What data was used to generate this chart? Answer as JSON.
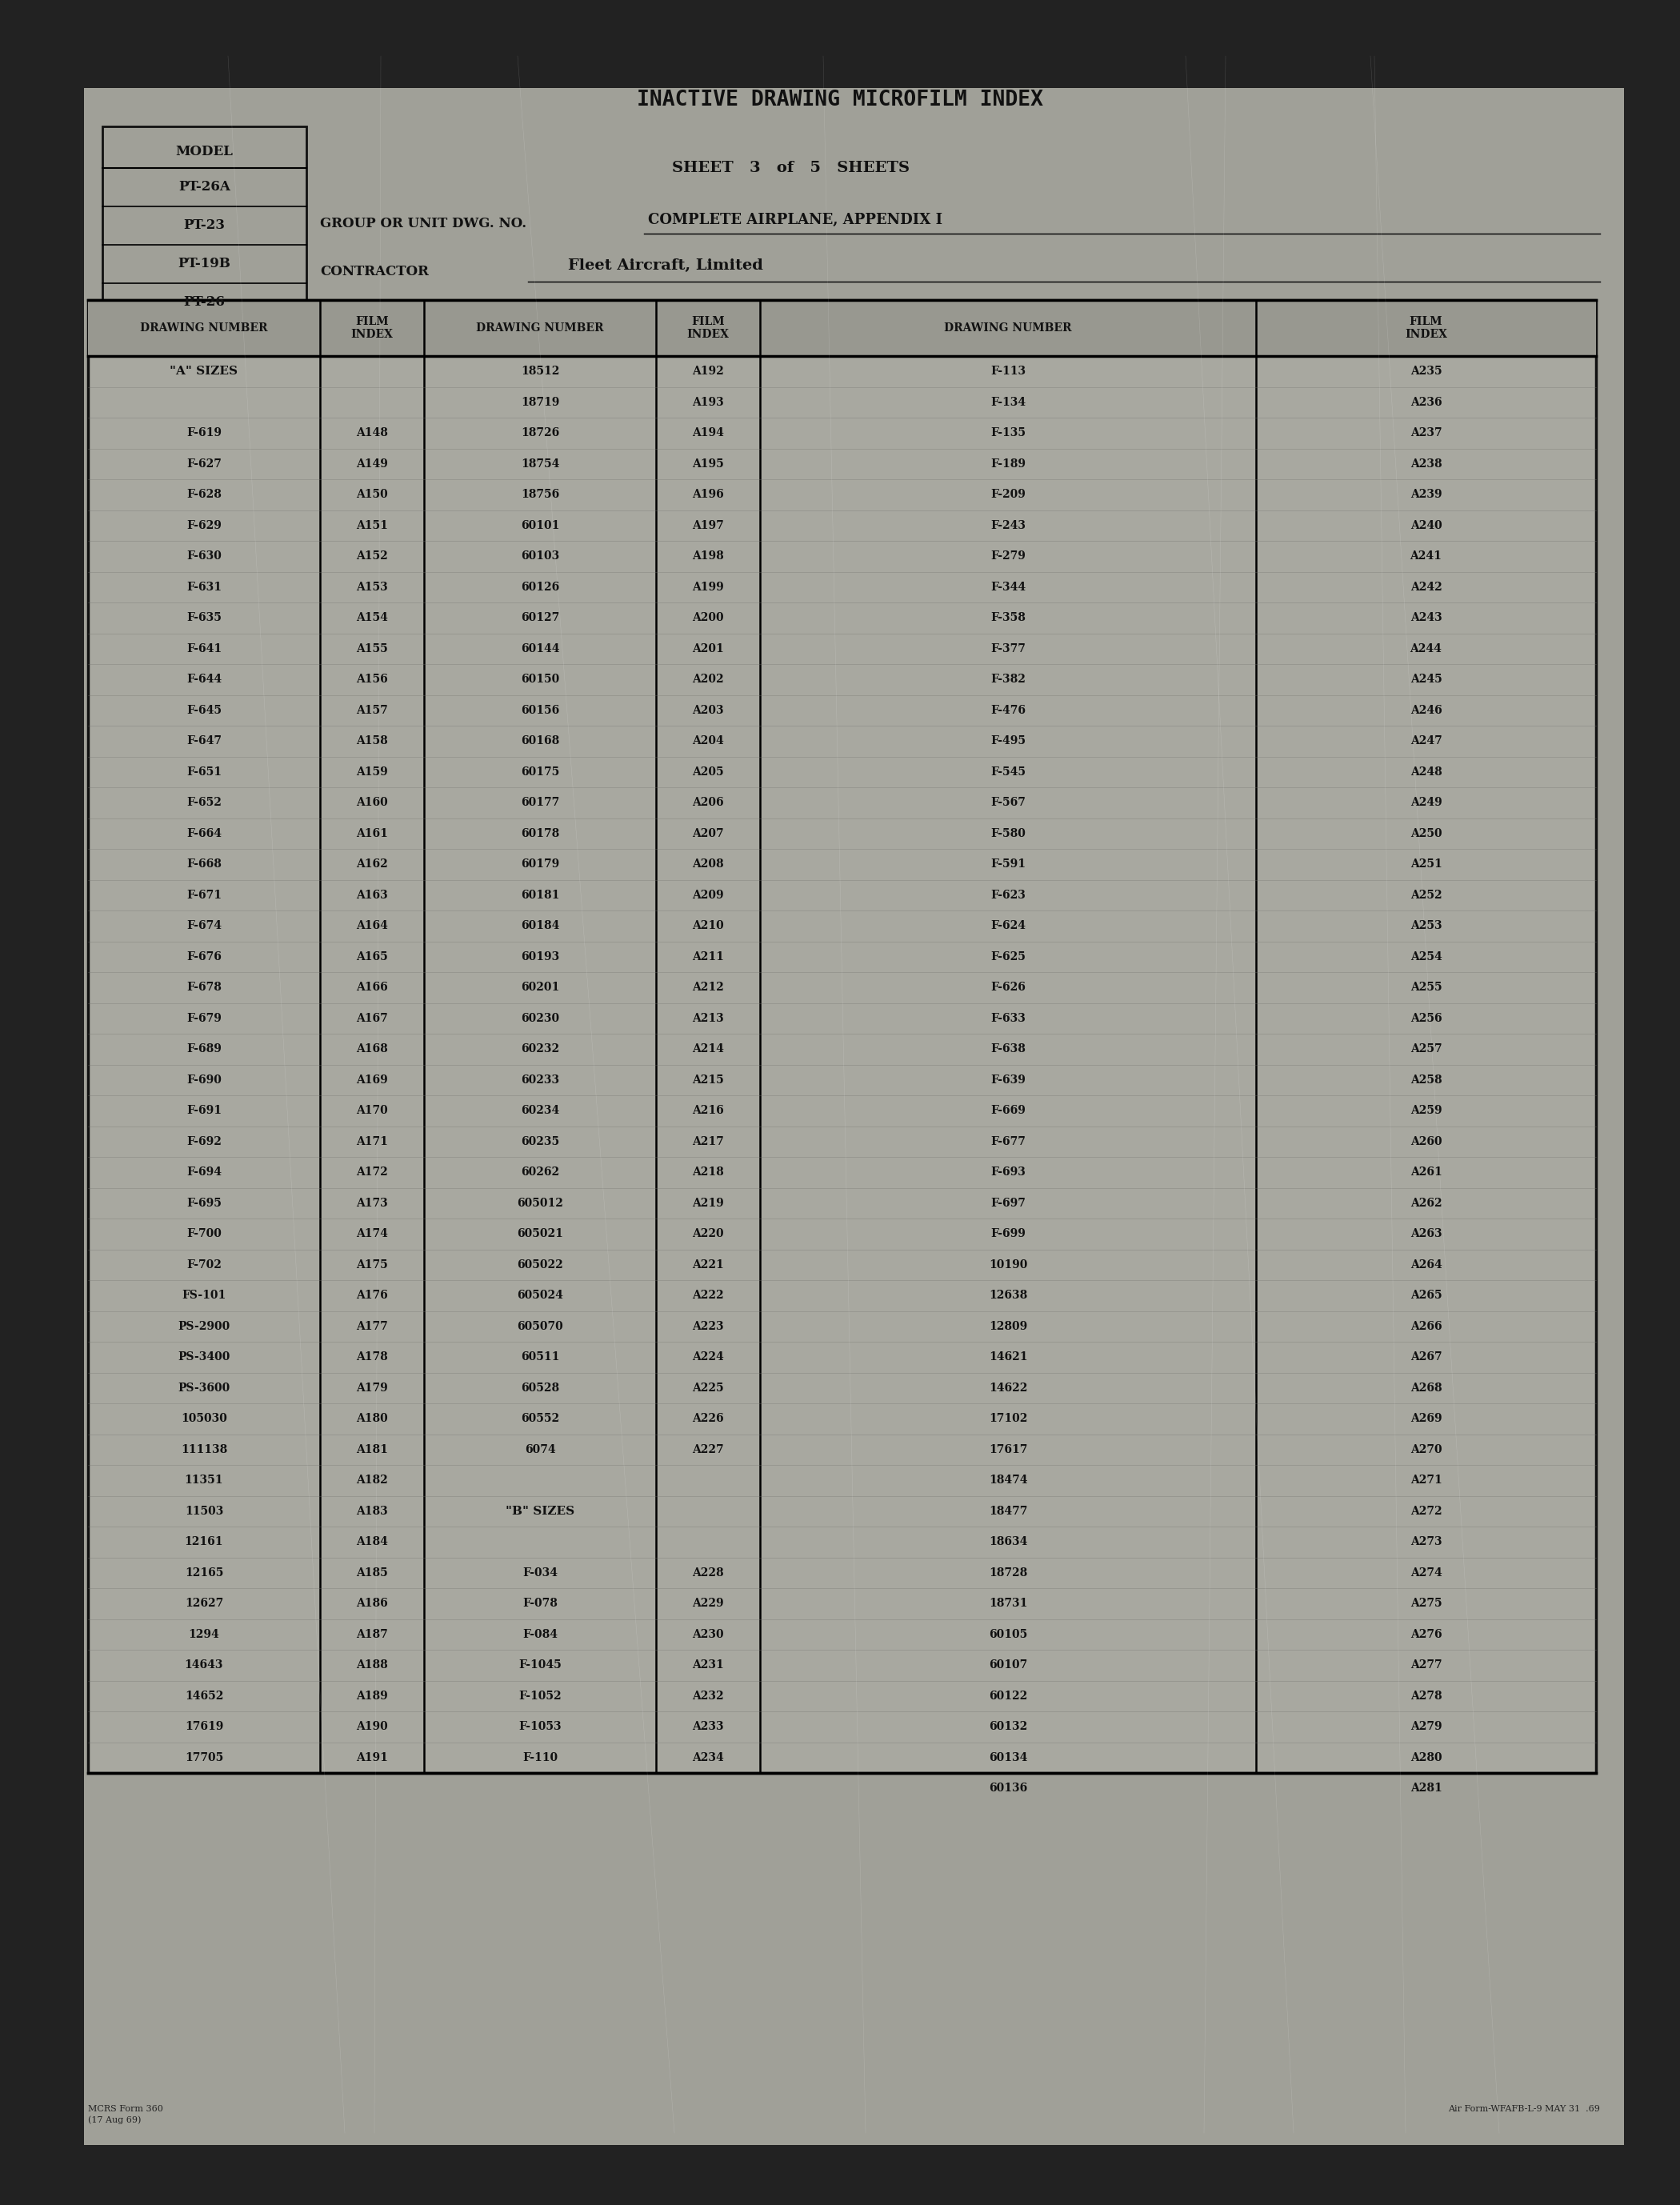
{
  "bg_outer": "#222222",
  "bg_paper": "#a8a8a0",
  "title": "INACTIVE DRAWING MICROFILM INDEX",
  "sheet_text": "SHEET   3   of   5   SHEETS",
  "group_label": "GROUP OR UNIT DWG. NO.",
  "group_value": "COMPLETE AIRPLANE, APPENDIX I",
  "contractor_label": "CONTRACTOR",
  "contractor_value": "Fleet Aircraft, Limited",
  "model_label": "MODEL",
  "models": [
    "PT-26A",
    "PT-23",
    "PT-19B",
    "PT-26"
  ],
  "col_headers": [
    "DRAWING NUMBER",
    "FILM\nINDEX",
    "DRAWING NUMBER",
    "FILM\nINDEX",
    "DRAWING NUMBER",
    "FILM\nINDEX"
  ],
  "col1": [
    [
      "\"A\" SIZES",
      ""
    ],
    [
      "",
      ""
    ],
    [
      "F-619",
      "A148"
    ],
    [
      "F-627",
      "A149"
    ],
    [
      "F-628",
      "A150"
    ],
    [
      "F-629",
      "A151"
    ],
    [
      "F-630",
      "A152"
    ],
    [
      "F-631",
      "A153"
    ],
    [
      "F-635",
      "A154"
    ],
    [
      "F-641",
      "A155"
    ],
    [
      "F-644",
      "A156"
    ],
    [
      "F-645",
      "A157"
    ],
    [
      "F-647",
      "A158"
    ],
    [
      "F-651",
      "A159"
    ],
    [
      "F-652",
      "A160"
    ],
    [
      "F-664",
      "A161"
    ],
    [
      "F-668",
      "A162"
    ],
    [
      "F-671",
      "A163"
    ],
    [
      "F-674",
      "A164"
    ],
    [
      "F-676",
      "A165"
    ],
    [
      "F-678",
      "A166"
    ],
    [
      "F-679",
      "A167"
    ],
    [
      "F-689",
      "A168"
    ],
    [
      "F-690",
      "A169"
    ],
    [
      "F-691",
      "A170"
    ],
    [
      "F-692",
      "A171"
    ],
    [
      "F-694",
      "A172"
    ],
    [
      "F-695",
      "A173"
    ],
    [
      "F-700",
      "A174"
    ],
    [
      "F-702",
      "A175"
    ],
    [
      "FS-101",
      "A176"
    ],
    [
      "PS-2900",
      "A177"
    ],
    [
      "PS-3400",
      "A178"
    ],
    [
      "PS-3600",
      "A179"
    ],
    [
      "105030",
      "A180"
    ],
    [
      "111138",
      "A181"
    ],
    [
      "11351",
      "A182"
    ],
    [
      "11503",
      "A183"
    ],
    [
      "12161",
      "A184"
    ],
    [
      "12165",
      "A185"
    ],
    [
      "12627",
      "A186"
    ],
    [
      "1294",
      "A187"
    ],
    [
      "14643",
      "A188"
    ],
    [
      "14652",
      "A189"
    ],
    [
      "17619",
      "A190"
    ],
    [
      "17705",
      "A191"
    ]
  ],
  "col2": [
    [
      "18512",
      "A192"
    ],
    [
      "18719",
      "A193"
    ],
    [
      "18726",
      "A194"
    ],
    [
      "18754",
      "A195"
    ],
    [
      "18756",
      "A196"
    ],
    [
      "60101",
      "A197"
    ],
    [
      "60103",
      "A198"
    ],
    [
      "60126",
      "A199"
    ],
    [
      "60127",
      "A200"
    ],
    [
      "60144",
      "A201"
    ],
    [
      "60150",
      "A202"
    ],
    [
      "60156",
      "A203"
    ],
    [
      "60168",
      "A204"
    ],
    [
      "60175",
      "A205"
    ],
    [
      "60177",
      "A206"
    ],
    [
      "60178",
      "A207"
    ],
    [
      "60179",
      "A208"
    ],
    [
      "60181",
      "A209"
    ],
    [
      "60184",
      "A210"
    ],
    [
      "60193",
      "A211"
    ],
    [
      "60201",
      "A212"
    ],
    [
      "60230",
      "A213"
    ],
    [
      "60232",
      "A214"
    ],
    [
      "60233",
      "A215"
    ],
    [
      "60234",
      "A216"
    ],
    [
      "60235",
      "A217"
    ],
    [
      "60262",
      "A218"
    ],
    [
      "605012",
      "A219"
    ],
    [
      "605021",
      "A220"
    ],
    [
      "605022",
      "A221"
    ],
    [
      "605024",
      "A222"
    ],
    [
      "605070",
      "A223"
    ],
    [
      "60511",
      "A224"
    ],
    [
      "60528",
      "A225"
    ],
    [
      "60552",
      "A226"
    ],
    [
      "6074",
      "A227"
    ],
    [
      "",
      ""
    ],
    [
      "\"B\" SIZES",
      ""
    ],
    [
      "",
      ""
    ],
    [
      "F-034",
      "A228"
    ],
    [
      "F-078",
      "A229"
    ],
    [
      "F-084",
      "A230"
    ],
    [
      "F-1045",
      "A231"
    ],
    [
      "F-1052",
      "A232"
    ],
    [
      "F-1053",
      "A233"
    ],
    [
      "F-110",
      "A234"
    ],
    [
      "",
      ""
    ]
  ],
  "col3": [
    [
      "F-113",
      "A235"
    ],
    [
      "F-134",
      "A236"
    ],
    [
      "F-135",
      "A237"
    ],
    [
      "F-189",
      "A238"
    ],
    [
      "F-209",
      "A239"
    ],
    [
      "F-243",
      "A240"
    ],
    [
      "F-279",
      "A241"
    ],
    [
      "F-344",
      "A242"
    ],
    [
      "F-358",
      "A243"
    ],
    [
      "F-377",
      "A244"
    ],
    [
      "F-382",
      "A245"
    ],
    [
      "F-476",
      "A246"
    ],
    [
      "F-495",
      "A247"
    ],
    [
      "F-545",
      "A248"
    ],
    [
      "F-567",
      "A249"
    ],
    [
      "F-580",
      "A250"
    ],
    [
      "F-591",
      "A251"
    ],
    [
      "F-623",
      "A252"
    ],
    [
      "F-624",
      "A253"
    ],
    [
      "F-625",
      "A254"
    ],
    [
      "F-626",
      "A255"
    ],
    [
      "F-633",
      "A256"
    ],
    [
      "F-638",
      "A257"
    ],
    [
      "F-639",
      "A258"
    ],
    [
      "F-669",
      "A259"
    ],
    [
      "F-677",
      "A260"
    ],
    [
      "F-693",
      "A261"
    ],
    [
      "F-697",
      "A262"
    ],
    [
      "F-699",
      "A263"
    ],
    [
      "10190",
      "A264"
    ],
    [
      "12638",
      "A265"
    ],
    [
      "12809",
      "A266"
    ],
    [
      "14621",
      "A267"
    ],
    [
      "14622",
      "A268"
    ],
    [
      "17102",
      "A269"
    ],
    [
      "17617",
      "A270"
    ],
    [
      "18474",
      "A271"
    ],
    [
      "18477",
      "A272"
    ],
    [
      "18634",
      "A273"
    ],
    [
      "18728",
      "A274"
    ],
    [
      "18731",
      "A275"
    ],
    [
      "60105",
      "A276"
    ],
    [
      "60107",
      "A277"
    ],
    [
      "60122",
      "A278"
    ],
    [
      "60132",
      "A279"
    ],
    [
      "60134",
      "A280"
    ],
    [
      "60136",
      "A281"
    ]
  ],
  "footer_left": "MCRS Form 360\n(17 Aug 69)",
  "footer_right": "Air Form-WFAFB-L-9 MAY 31  .69"
}
